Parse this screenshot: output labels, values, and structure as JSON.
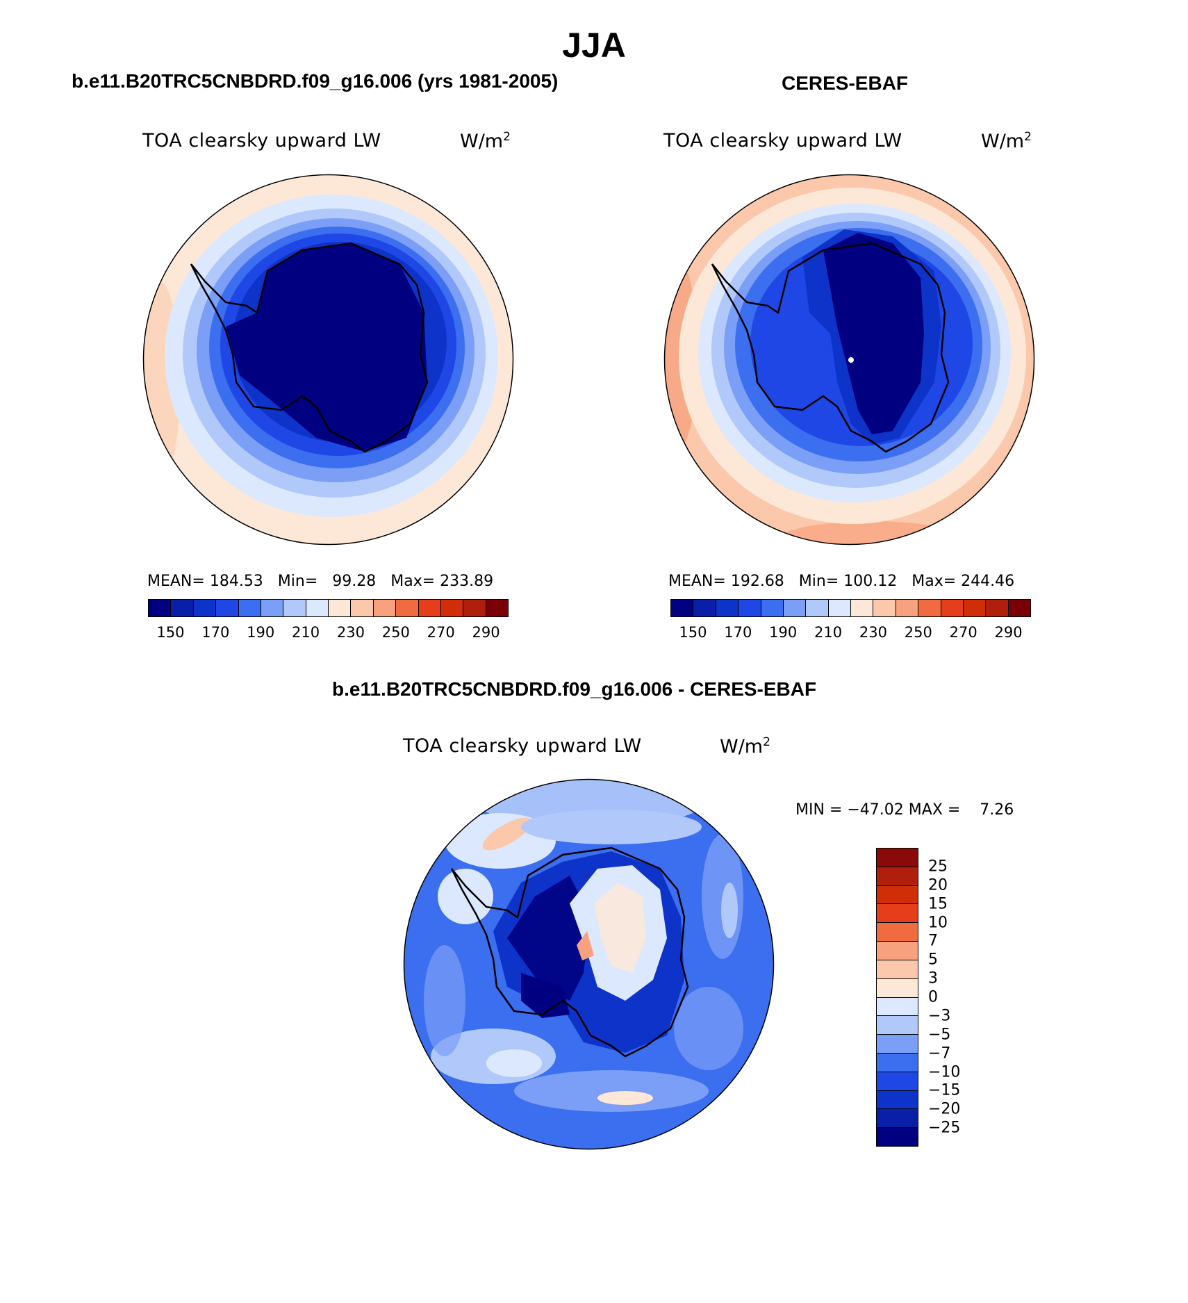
{
  "figure_title": "JJA",
  "colors": {
    "abs_scale": [
      "#000080",
      "#0a1fa8",
      "#0d33c8",
      "#1f47e6",
      "#3c6ef0",
      "#7b9ef6",
      "#b1c9fa",
      "#dbe8fd",
      "#fde8d8",
      "#fbc8ac",
      "#f8a17e",
      "#f06b40",
      "#e63d1a",
      "#d02e09",
      "#b01f0c",
      "#7a0008"
    ],
    "diff_scale": [
      "#000080",
      "#0a1fa8",
      "#0d33c8",
      "#1f47e6",
      "#3c6ef0",
      "#7b9ef6",
      "#b1c9fa",
      "#dbe8fd",
      "#fde8d8",
      "#fbc8ac",
      "#f8a17e",
      "#f06b40",
      "#e63d1a",
      "#d02e09",
      "#b01f0c",
      "#8a0a0a"
    ]
  },
  "panels": [
    {
      "title": "b.e11.B20TRC5CNBDRD.f09_g16.006 (yrs 1981-2005)",
      "plot_title": "TOA clearsky upward LW",
      "units_base": "W/m",
      "units_exp": "2",
      "stats": {
        "mean_label": "MEAN=",
        "mean": "184.53",
        "min_label": "Min=",
        "min": "99.28",
        "max_label": "Max=",
        "max": "233.89"
      },
      "colorbar_labels": [
        "150",
        "170",
        "190",
        "210",
        "230",
        "250",
        "270",
        "290"
      ]
    },
    {
      "title": "CERES-EBAF",
      "plot_title": "TOA clearsky upward LW",
      "units_base": "W/m",
      "units_exp": "2",
      "stats": {
        "mean_label": "MEAN=",
        "mean": "192.68",
        "min_label": "Min=",
        "min": "100.12",
        "max_label": "Max=",
        "max": "244.46"
      },
      "colorbar_labels": [
        "150",
        "170",
        "190",
        "210",
        "230",
        "250",
        "270",
        "290"
      ]
    }
  ],
  "difference": {
    "title": "b.e11.B20TRC5CNBDRD.f09_g16.006 - CERES-EBAF",
    "plot_title": "TOA clearsky upward LW",
    "units_base": "W/m",
    "units_exp": "2",
    "stats": {
      "min_label": "MIN =",
      "min": "−47.02",
      "max_label": "MAX =",
      "max": "7.26"
    },
    "colorbar_labels": [
      "25",
      "20",
      "15",
      "10",
      "7",
      "5",
      "3",
      "0",
      "−3",
      "−5",
      "−7",
      "−10",
      "−15",
      "−20",
      "−25"
    ]
  }
}
